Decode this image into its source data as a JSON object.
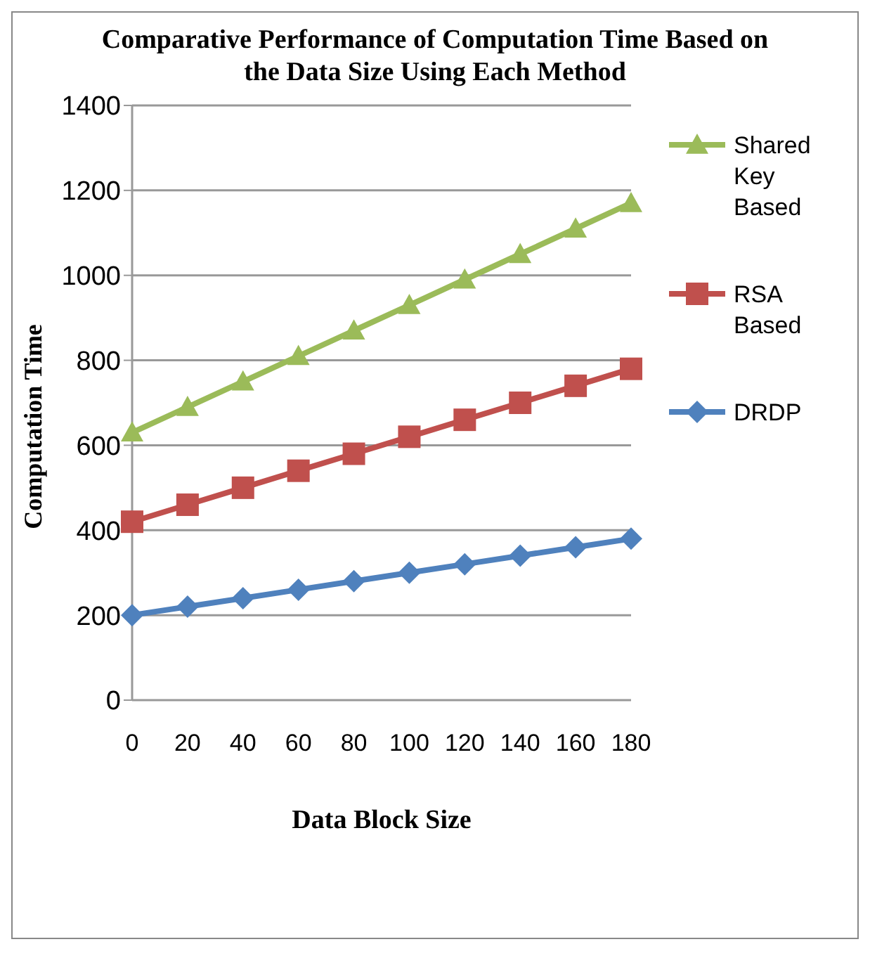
{
  "chart_data": {
    "type": "line",
    "title": "Comparative Performance of Computation Time Based on the Data Size Using Each Method",
    "xlabel": "Data Block Size",
    "ylabel": "Computation Time",
    "categories": [
      "0",
      "20",
      "40",
      "60",
      "80",
      "100",
      "120",
      "140",
      "160",
      "180"
    ],
    "series": [
      {
        "name": "DRDP",
        "color": "#4f81bd",
        "marker": "diamond",
        "values": [
          200,
          220,
          240,
          260,
          280,
          300,
          320,
          340,
          360,
          380
        ]
      },
      {
        "name": "RSA Based",
        "color": "#c0504d",
        "marker": "square",
        "values": [
          420,
          460,
          500,
          540,
          580,
          620,
          660,
          700,
          740,
          780
        ]
      },
      {
        "name": "Shared Key Based",
        "color": "#9bbb59",
        "marker": "triangle",
        "values": [
          630,
          690,
          750,
          810,
          870,
          930,
          990,
          1050,
          1110,
          1170
        ]
      }
    ],
    "ylim": [
      0,
      1400
    ],
    "yticks": [
      0,
      200,
      400,
      600,
      800,
      1000,
      1200,
      1400
    ],
    "grid": "y",
    "legend": "right"
  }
}
